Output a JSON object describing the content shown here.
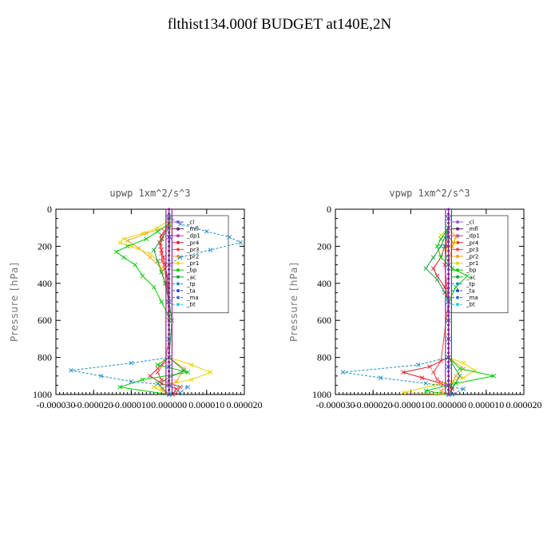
{
  "page": {
    "title": "flthist134.000f  BUDGET at140E,2N"
  },
  "chart_data": [
    {
      "type": "line",
      "title": "upwp   1xm^2/s^3",
      "ylabel": "Pressure [hPa]",
      "xlim": [
        -3e-05,
        2e-05
      ],
      "ylim": [
        1000,
        0
      ],
      "xticks": [
        "-0.000030",
        "-0.000020",
        "-0.000010",
        "0.000000",
        "0.000010",
        "0.000020"
      ],
      "yticks": [
        "0",
        "200",
        "400",
        "600",
        "800",
        "1000"
      ],
      "legend_position": "top-right",
      "series": [
        {
          "name": "cl",
          "color": "#9b59d0",
          "p": [
            50,
            150,
            300,
            500,
            700,
            850,
            950,
            1000
          ],
          "x": [
            0,
            0,
            0,
            0,
            0,
            0,
            0,
            0
          ]
        },
        {
          "name": "mfl",
          "color": "#6a1b7a",
          "p": [
            50,
            150,
            300,
            500,
            700,
            850,
            950,
            1000
          ],
          "x": [
            0,
            0,
            0,
            0,
            0,
            0,
            0,
            0
          ]
        },
        {
          "name": "dp1",
          "color": "#b040a0",
          "p": [
            50,
            150,
            300,
            500,
            700,
            850,
            950,
            1000
          ],
          "x": [
            0,
            2e-07,
            0,
            0,
            0,
            0,
            0,
            0
          ]
        },
        {
          "name": "pr4",
          "color": "#e01f2f",
          "p": [
            60,
            100,
            140,
            180,
            220,
            260,
            300,
            360,
            420,
            500,
            600,
            700,
            800,
            860,
            900,
            940,
            970,
            1000
          ],
          "x": [
            0,
            -5e-07,
            -2e-06,
            -2.5e-06,
            -2e-06,
            -1.5e-06,
            -1e-06,
            -5e-07,
            -3e-07,
            -2e-07,
            0,
            0,
            0,
            -3e-06,
            -5e-06,
            -2e-06,
            2e-06,
            1e-06
          ]
        },
        {
          "name": "pr3",
          "color": "#ff4040",
          "p": [
            80,
            120,
            160,
            200,
            240,
            280,
            320,
            400,
            500,
            700,
            820,
            880,
            920,
            960,
            990
          ],
          "x": [
            0,
            -1.2e-06,
            -1.8e-06,
            -2.2e-06,
            -2e-06,
            -1.8e-06,
            -1.2e-06,
            -6e-07,
            -2e-07,
            0,
            -1e-06,
            -3e-06,
            -2e-06,
            3e-06,
            2e-06
          ]
        },
        {
          "name": "pr2",
          "color": "#f5a020",
          "p": [
            90,
            130,
            170,
            210,
            260,
            320,
            400,
            500,
            800,
            860,
            930,
            970,
            1000
          ],
          "x": [
            0,
            -6e-06,
            -1.1e-05,
            -8e-06,
            -5e-06,
            -2e-06,
            -1e-06,
            0,
            0,
            4e-06,
            2e-06,
            -2e-06,
            0
          ]
        },
        {
          "name": "pr1",
          "color": "#e8d400",
          "p": [
            60,
            100,
            130,
            160,
            180,
            200,
            240,
            280,
            320,
            400,
            500,
            600,
            800,
            840,
            880,
            920,
            960,
            1000
          ],
          "x": [
            0,
            -3e-06,
            -7e-06,
            -1.2e-05,
            -1.3e-05,
            -1e-05,
            -5e-06,
            -3e-06,
            -2e-06,
            -1e-06,
            0,
            0,
            0,
            6e-06,
            1.1e-05,
            6e-06,
            -4e-06,
            0
          ]
        },
        {
          "name": "bp",
          "color": "#00cc00",
          "p": [
            80,
            120,
            160,
            200,
            230,
            260,
            300,
            360,
            420,
            500,
            580,
            700,
            800,
            840,
            880,
            920,
            960,
            1000
          ],
          "x": [
            0,
            -3e-06,
            -6e-06,
            -1.1e-05,
            -1.4e-05,
            -1.2e-05,
            -9e-06,
            -7e-06,
            -4e-06,
            -2e-06,
            0,
            0,
            0,
            -3e-06,
            5e-06,
            -7e-06,
            -1.3e-05,
            0
          ]
        },
        {
          "name": "ac",
          "color": "#1aa040",
          "p": [
            100,
            160,
            220,
            280,
            340,
            400,
            500,
            600,
            800,
            870,
            940,
            1000
          ],
          "x": [
            0,
            -2e-06,
            -4e-06,
            -3e-06,
            -2e-06,
            -1e-06,
            0,
            8e-07,
            0,
            4e-06,
            -3e-06,
            0
          ]
        },
        {
          "name": "tp",
          "color": "#1e8cc8",
          "p": [
            40,
            80,
            120,
            150,
            180,
            220,
            260,
            300,
            800,
            830,
            870,
            900,
            930,
            960,
            990,
            1000
          ],
          "x": [
            0,
            3e-06,
            1e-05,
            1.6e-05,
            1.9e-05,
            1.1e-05,
            3e-06,
            0,
            0,
            -1e-05,
            -2.6e-05,
            -1.8e-05,
            -1e-05,
            5e-06,
            3e-06,
            0
          ]
        },
        {
          "name": "ta",
          "color": "#2a4ad8",
          "p": [
            50,
            150,
            300,
            500,
            700,
            850,
            950,
            1000
          ],
          "x": [
            0,
            0,
            0,
            0,
            0,
            0,
            0,
            0
          ]
        },
        {
          "name": "ma",
          "color": "#3070c0",
          "p": [
            50,
            150,
            300,
            500,
            700,
            850,
            950,
            1000
          ],
          "x": [
            0,
            0,
            0,
            0,
            0,
            0,
            0,
            0
          ]
        },
        {
          "name": "bt",
          "color": "#20c8e8",
          "p": [
            50,
            150,
            300,
            500,
            700,
            850,
            950,
            1000
          ],
          "x": [
            0,
            0,
            0,
            0,
            0,
            0,
            0,
            0
          ]
        }
      ]
    },
    {
      "type": "line",
      "title": "vpwp   1xm^2/s^3",
      "ylabel": "Pressure [hPa]",
      "xlim": [
        -3e-05,
        2e-05
      ],
      "ylim": [
        1000,
        0
      ],
      "xticks": [
        "-0.000030",
        "-0.000020",
        "-0.000010",
        "0.000000",
        "0.000010",
        "0.000020"
      ],
      "yticks": [
        "0",
        "200",
        "400",
        "600",
        "800",
        "1000"
      ],
      "legend_position": "top-right",
      "series": [
        {
          "name": "cl",
          "color": "#9b59d0",
          "p": [
            50,
            150,
            300,
            500,
            700,
            850,
            950,
            1000
          ],
          "x": [
            0,
            0,
            0,
            0,
            0,
            0,
            0,
            0
          ]
        },
        {
          "name": "mfl",
          "color": "#6a1b7a",
          "p": [
            50,
            150,
            300,
            500,
            700,
            850,
            950,
            1000
          ],
          "x": [
            0,
            0,
            0,
            0,
            0,
            0,
            0,
            0
          ]
        },
        {
          "name": "dp1",
          "color": "#b040a0",
          "p": [
            50,
            150,
            300,
            500,
            700,
            850,
            950,
            1000
          ],
          "x": [
            0,
            0,
            0,
            0,
            0,
            0,
            0,
            0
          ]
        },
        {
          "name": "pr4",
          "color": "#e01f2f",
          "p": [
            100,
            200,
            260,
            320,
            360,
            420,
            500,
            800,
            850,
            880,
            910,
            940,
            970,
            1000
          ],
          "x": [
            0,
            -1e-06,
            -2e-06,
            -4e-06,
            -3e-06,
            -1e-06,
            0,
            0,
            -5e-06,
            -1.2e-05,
            -7e-06,
            -2e-06,
            1e-06,
            0
          ]
        },
        {
          "name": "pr3",
          "color": "#ff4040",
          "p": [
            100,
            200,
            300,
            500,
            820,
            880,
            920,
            960,
            1000
          ],
          "x": [
            0,
            -5e-07,
            -1e-06,
            0,
            -2e-06,
            -4e-06,
            -3e-06,
            1e-06,
            0
          ]
        },
        {
          "name": "pr2",
          "color": "#f5a020",
          "p": [
            100,
            150,
            200,
            300,
            500,
            800,
            860,
            900,
            940,
            980,
            1000
          ],
          "x": [
            0,
            2e-06,
            1e-06,
            0,
            0,
            0,
            4e-06,
            2e-06,
            1e-06,
            -2e-06,
            0
          ]
        },
        {
          "name": "pr1",
          "color": "#e8d400",
          "p": [
            100,
            140,
            180,
            220,
            300,
            500,
            800,
            830,
            870,
            910,
            950,
            990,
            1000
          ],
          "x": [
            0,
            -2e-06,
            2e-06,
            -1e-06,
            0,
            0,
            0,
            4e-06,
            7e-06,
            4e-06,
            -4e-06,
            -1.2e-05,
            0
          ]
        },
        {
          "name": "bp",
          "color": "#00cc00",
          "p": [
            100,
            160,
            200,
            260,
            320,
            360,
            420,
            500,
            600,
            800,
            860,
            900,
            940,
            980,
            1000
          ],
          "x": [
            0,
            -2e-06,
            -3e-06,
            -2e-06,
            1e-06,
            5e-06,
            2e-06,
            0,
            0,
            0,
            3e-06,
            1.2e-05,
            2e-06,
            -6e-06,
            0
          ]
        },
        {
          "name": "ac",
          "color": "#1aa040",
          "p": [
            100,
            200,
            260,
            320,
            380,
            450,
            500,
            600,
            800,
            900,
            1000
          ],
          "x": [
            0,
            -2e-06,
            -4e-06,
            -6e-06,
            -3e-06,
            -1e-06,
            0,
            0,
            0,
            3e-06,
            0
          ]
        },
        {
          "name": "tp",
          "color": "#1e8cc8",
          "p": [
            100,
            200,
            300,
            500,
            800,
            840,
            880,
            910,
            940,
            970,
            1000
          ],
          "x": [
            0,
            -1e-06,
            0,
            0,
            0,
            -8e-06,
            -2.8e-05,
            -1.8e-05,
            -6e-06,
            4e-06,
            1e-06
          ]
        },
        {
          "name": "ta",
          "color": "#2a4ad8",
          "p": [
            50,
            150,
            300,
            500,
            700,
            850,
            950,
            1000
          ],
          "x": [
            0,
            0,
            0,
            0,
            0,
            0,
            0,
            0
          ]
        },
        {
          "name": "ma",
          "color": "#3070c0",
          "p": [
            50,
            150,
            300,
            500,
            700,
            850,
            950,
            1000
          ],
          "x": [
            0,
            0,
            0,
            0,
            0,
            0,
            0,
            0
          ]
        },
        {
          "name": "bt",
          "color": "#20c8e8",
          "p": [
            50,
            150,
            300,
            500,
            700,
            850,
            950,
            1000
          ],
          "x": [
            0,
            0,
            0,
            0,
            0,
            0,
            0,
            0
          ]
        }
      ]
    }
  ]
}
